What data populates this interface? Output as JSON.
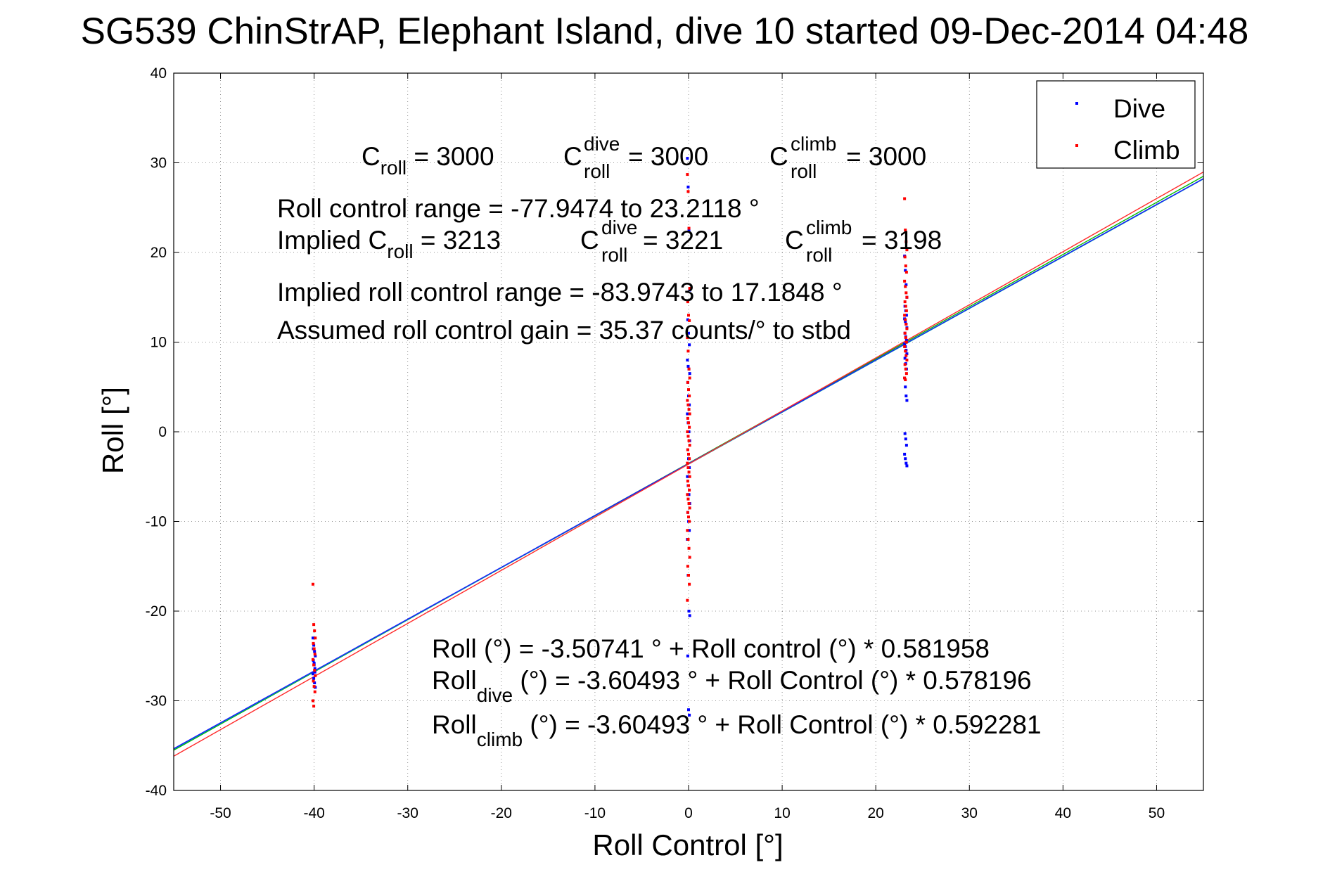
{
  "chart_data": {
    "type": "scatter",
    "title": "SG539 ChinStrAP, Elephant Island, dive 10 started 09-Dec-2014 04:48",
    "xlabel": "Roll Control [°]",
    "ylabel": "Roll [°]",
    "xlim": [
      -55,
      55
    ],
    "ylim": [
      -40,
      40
    ],
    "xticks": [
      -50,
      -40,
      -30,
      -20,
      -10,
      0,
      10,
      20,
      30,
      40,
      50
    ],
    "yticks": [
      -40,
      -30,
      -20,
      -10,
      0,
      10,
      20,
      30,
      40
    ],
    "grid": true,
    "legend_position": "top-right",
    "colors": {
      "dive": "#0000ff",
      "climb": "#ff0000",
      "fit_green": "#00bb00",
      "fit_cyan": "#00a0a0",
      "fit_blue": "#1a1aff",
      "fit_red": "#ff2a2a"
    },
    "series": [
      {
        "name": "Dive",
        "color": "#0000ff",
        "clusters": [
          {
            "x": -40,
            "y_values": [
              -23,
              -23.8,
              -24.5,
              -25,
              -25.5,
              -26,
              -26.4,
              -27,
              -27.5,
              -28,
              -28.5,
              -24.2,
              -25.8,
              -26.8
            ]
          },
          {
            "x": 0,
            "y_values": [
              30.5,
              27.3,
              22.5,
              15.8,
              12.5,
              11,
              9.7,
              8,
              7.3,
              7,
              6.5,
              5.5,
              4,
              3,
              2,
              1,
              0,
              -1,
              -2,
              -3,
              -4,
              -5,
              -6,
              -7,
              -8,
              -9,
              -10,
              -11,
              -12,
              -16,
              -20,
              -20.5,
              -25,
              -31,
              -31.6
            ]
          },
          {
            "x": 23.2,
            "y_values": [
              19.6,
              18,
              16.4,
              15,
              14,
              13.5,
              13,
              12.6,
              12.3,
              12,
              11.6,
              11,
              10.6,
              10.2,
              9.8,
              9.5,
              9.1,
              8.7,
              8.2,
              7.6,
              7,
              6,
              5,
              4,
              3.5,
              -0.2,
              -0.8,
              -1.5,
              -2.5,
              -3,
              -3.5,
              -3.8
            ]
          }
        ]
      },
      {
        "name": "Climb",
        "color": "#ff0000",
        "clusters": [
          {
            "x": -40,
            "y_values": [
              -17,
              -21.5,
              -22.2,
              -23,
              -23.6,
              -24.2,
              -24.8,
              -25.4,
              -26,
              -26.6,
              -27.2,
              -27.8,
              -28.4,
              -29,
              -30,
              -30.6
            ]
          },
          {
            "x": 0,
            "y_values": [
              28.7,
              26.8,
              22.7,
              16,
              14.5,
              13,
              12.4,
              10.5,
              9,
              7,
              6,
              5.5,
              4.7,
              4,
              3.5,
              3,
              2.5,
              2,
              1.5,
              1,
              0.5,
              0,
              -0.5,
              -1,
              -1.5,
              -2,
              -2.5,
              -3,
              -3.5,
              -4,
              -4.5,
              -5,
              -5.5,
              -6,
              -6.5,
              -7,
              -7.5,
              -8,
              -8.5,
              -9,
              -9.5,
              -10,
              -11,
              -12,
              -13,
              -14,
              -15,
              -16,
              -17,
              -18.8
            ]
          },
          {
            "x": 23.2,
            "y_values": [
              26,
              22.5,
              21.2,
              20.3,
              19.5,
              18.5,
              17.8,
              16.8,
              16.2,
              15.5,
              15,
              14.5,
              14,
              13.5,
              13,
              12.5,
              12,
              11.5,
              11,
              10.5,
              10,
              9.5,
              9,
              8.5,
              8,
              7.5,
              7,
              6.5,
              6,
              5.8
            ]
          }
        ]
      }
    ],
    "fit_lines": [
      {
        "color": "#00bb00",
        "intercept": -3.50741,
        "slope": 0.581958
      },
      {
        "color": "#00a0a0",
        "intercept": -3.60493,
        "slope": 0.578196
      },
      {
        "color": "#1a1aff",
        "intercept": -3.55,
        "slope": 0.578
      },
      {
        "color": "#ff2a2a",
        "intercept": -3.60493,
        "slope": 0.592281
      }
    ],
    "annotations": {
      "c_roll": {
        "base": "C",
        "sub": "roll",
        "tail": " = 3000"
      },
      "c_roll_dive": {
        "base": "C",
        "sup": "dive",
        "sub": "roll",
        "tail": " = 3000"
      },
      "c_roll_climb": {
        "base": "C",
        "sup": "climb",
        "sub": "roll",
        "tail": " = 3000"
      },
      "roll_control_range": "Roll control range = -77.9474 to 23.2118 °",
      "implied_c_roll": {
        "prefix": "Implied C",
        "sub": "roll",
        "tail": " = 3213"
      },
      "implied_c_roll_dive": {
        "base": "C",
        "sup": "dive",
        "sub": "roll",
        "tail": " = 3221"
      },
      "implied_c_roll_climb": {
        "base": "C",
        "sup": "climb",
        "sub": "roll",
        "tail": " = 3198"
      },
      "implied_range": "Implied roll control range = -83.9743 to 17.1848 °",
      "assumed_gain": "Assumed roll control gain = 35.37 counts/° to stbd",
      "fit_all": "Roll (°) = -3.50741 ° + Roll control (°) * 0.581958",
      "fit_dive": {
        "base": "Roll",
        "sub": "dive",
        "tail": " (°) = -3.60493 ° + Roll Control (°) * 0.578196"
      },
      "fit_climb": {
        "base": "Roll",
        "sub": "climb",
        "tail": " (°) = -3.60493 ° + Roll Control (°) * 0.592281"
      }
    }
  }
}
